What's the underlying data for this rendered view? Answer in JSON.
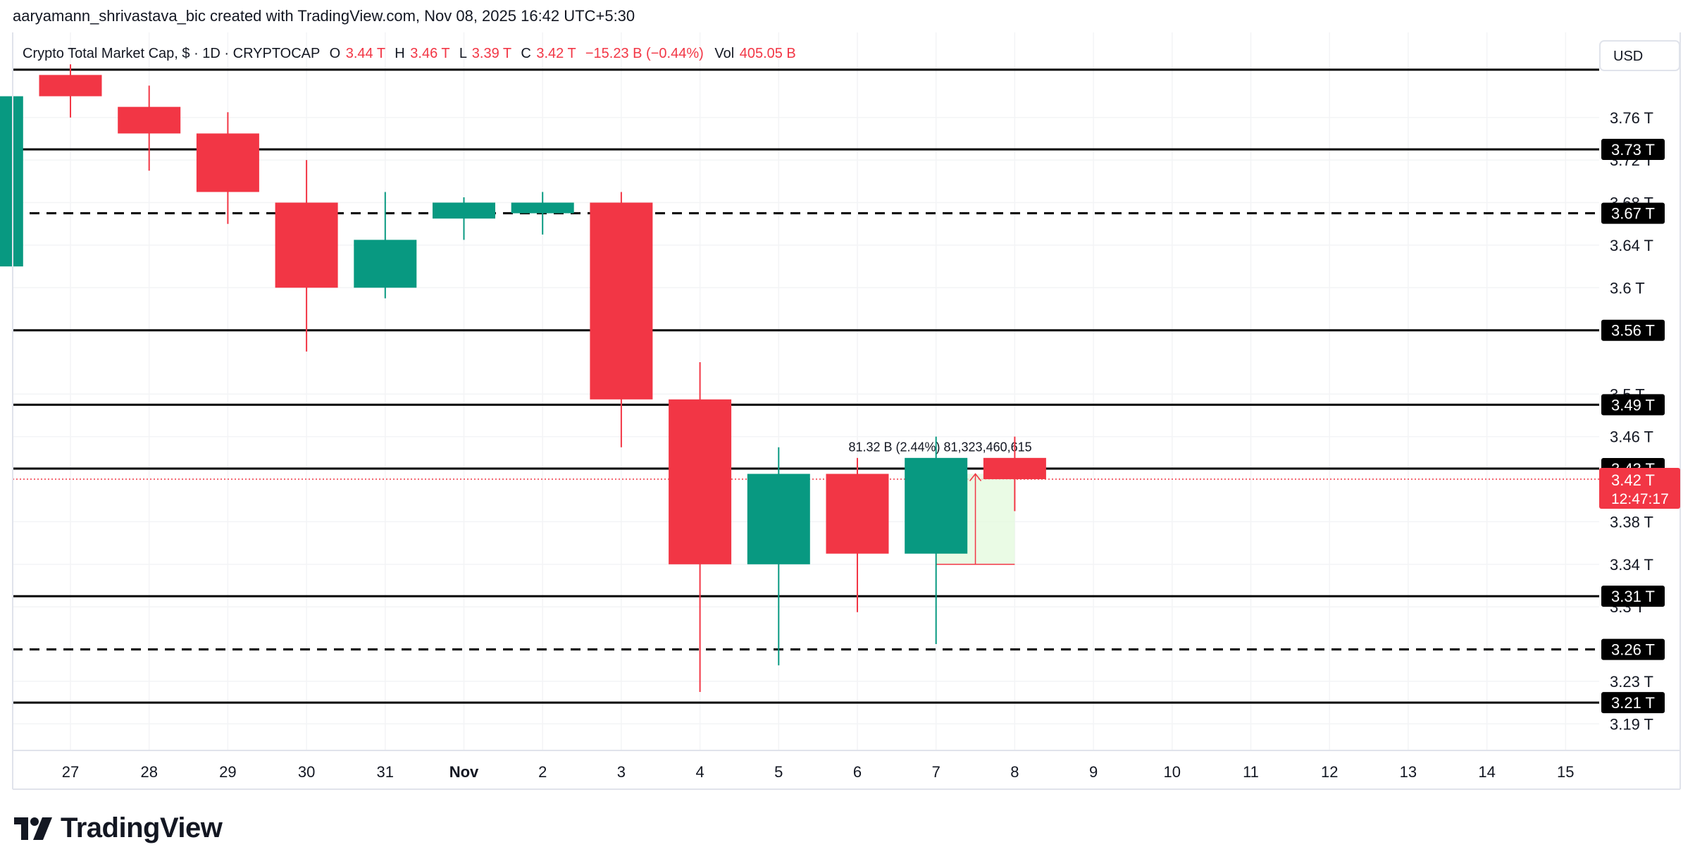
{
  "header": {
    "credit": "aaryamann_shrivastava_bic created with TradingView.com, Nov 08, 2025 16:42 UTC+5:30"
  },
  "legend": {
    "symbol": "Crypto Total Market Cap, $ · 1D · CRYPTOCAP",
    "o_label": "O",
    "o_value": "3.44 T",
    "h_label": "H",
    "h_value": "3.46 T",
    "l_label": "L",
    "l_value": "3.39 T",
    "c_label": "C",
    "c_value": "3.42 T",
    "change": "−15.23 B (−0.44%)",
    "vol_label": "Vol",
    "vol_value": "405.05 B"
  },
  "currency": "USD",
  "brand": {
    "name": "TradingView"
  },
  "colors": {
    "up": "#089981",
    "down": "#f23645",
    "text": "#131722",
    "grid": "#f3f4f6",
    "level": "#000000",
    "current_price": "#f23645",
    "measure_fill": "#e3f9dc",
    "measure_border": "#f23645"
  },
  "chart_data": {
    "type": "candlestick",
    "x_ticks": [
      "27",
      "28",
      "29",
      "30",
      "31",
      "Nov",
      "2",
      "3",
      "4",
      "5",
      "6",
      "7",
      "8",
      "9",
      "10",
      "11",
      "12",
      "13",
      "14",
      "15"
    ],
    "candles": [
      {
        "day": "26",
        "open": 3.62,
        "high": 3.79,
        "low": 3.62,
        "close": 3.78
      },
      {
        "day": "27",
        "open": 3.8,
        "high": 3.81,
        "low": 3.76,
        "close": 3.78
      },
      {
        "day": "28",
        "open": 3.77,
        "high": 3.79,
        "low": 3.71,
        "close": 3.745
      },
      {
        "day": "29",
        "open": 3.745,
        "high": 3.765,
        "low": 3.66,
        "close": 3.69
      },
      {
        "day": "30",
        "open": 3.68,
        "high": 3.72,
        "low": 3.54,
        "close": 3.6
      },
      {
        "day": "31",
        "open": 3.6,
        "high": 3.69,
        "low": 3.59,
        "close": 3.645
      },
      {
        "day": "Nov 1",
        "open": 3.665,
        "high": 3.685,
        "low": 3.645,
        "close": 3.68
      },
      {
        "day": "2",
        "open": 3.67,
        "high": 3.69,
        "low": 3.65,
        "close": 3.68
      },
      {
        "day": "3",
        "open": 3.68,
        "high": 3.69,
        "low": 3.45,
        "close": 3.495
      },
      {
        "day": "4",
        "open": 3.495,
        "high": 3.53,
        "low": 3.22,
        "close": 3.34
      },
      {
        "day": "5",
        "open": 3.34,
        "high": 3.45,
        "low": 3.245,
        "close": 3.425
      },
      {
        "day": "6",
        "open": 3.425,
        "high": 3.44,
        "low": 3.295,
        "close": 3.35
      },
      {
        "day": "7",
        "open": 3.35,
        "high": 3.46,
        "low": 3.265,
        "close": 3.44
      },
      {
        "day": "8",
        "open": 3.44,
        "high": 3.46,
        "low": 3.39,
        "close": 3.42
      }
    ],
    "y_ticks": [
      "3.76 T",
      "3.72 T",
      "3.68 T",
      "3.64 T",
      "3.6 T",
      "3.5 T",
      "3.46 T",
      "3.38 T",
      "3.34 T",
      "3.3 T",
      "3.23 T",
      "3.19 T"
    ],
    "y_tick_values": [
      3.76,
      3.72,
      3.68,
      3.64,
      3.6,
      3.5,
      3.46,
      3.38,
      3.34,
      3.3,
      3.23,
      3.19
    ],
    "horizontal_levels": [
      {
        "label": "3.73 T",
        "value": 3.73,
        "style": "solid"
      },
      {
        "label": "3.67 T",
        "value": 3.67,
        "style": "dashed"
      },
      {
        "label": "3.56 T",
        "value": 3.56,
        "style": "solid"
      },
      {
        "label": "3.49 T",
        "value": 3.49,
        "style": "solid"
      },
      {
        "label": "3.43 T",
        "value": 3.43,
        "style": "solid"
      },
      {
        "label": "3.31 T",
        "value": 3.31,
        "style": "solid"
      },
      {
        "label": "3.26 T",
        "value": 3.26,
        "style": "dashed"
      },
      {
        "label": "3.21 T",
        "value": 3.21,
        "style": "solid"
      }
    ],
    "top_line_value": 3.805,
    "current_price": {
      "label": "3.42 T",
      "countdown": "12:47:17",
      "value": 3.42
    },
    "measure": {
      "label": "81.32 B (2.44%) 81,323,460,615",
      "from": 3.34,
      "to": 3.425,
      "start_day": "7",
      "end_day": "8"
    },
    "ylim": [
      3.165,
      3.84
    ],
    "grid": true
  }
}
